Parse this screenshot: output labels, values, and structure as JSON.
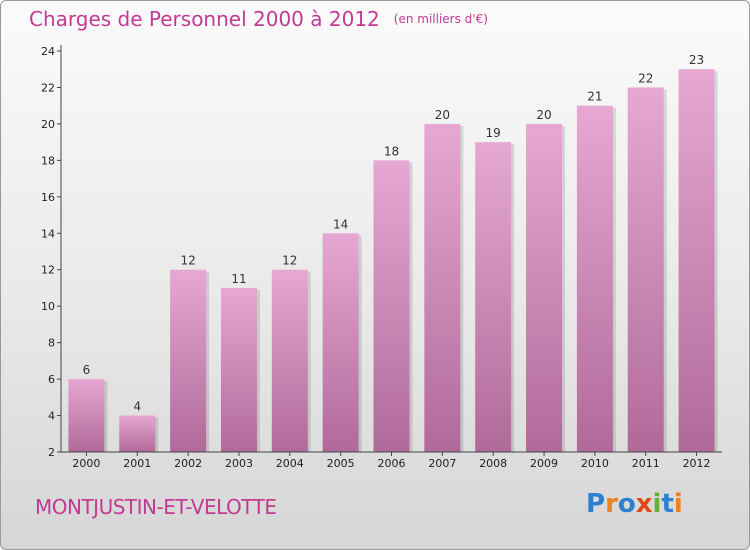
{
  "header": {
    "title": "Charges de Personnel 2000 à 2012",
    "subtitle": "(en milliers d'€)"
  },
  "footer": {
    "commune": "MONTJUSTIN-ET-VELOTTE",
    "logo_letters": [
      "P",
      "r",
      "o",
      "x",
      "i",
      "t",
      "i"
    ],
    "logo_colors": [
      "#2d7fd0",
      "#e8831f",
      "#2d7fd0",
      "#e2471c",
      "#62b52e",
      "#2d7fd0",
      "#e8831f"
    ]
  },
  "colors": {
    "bar_top": "#e6a8d2",
    "bar_bottom": "#b06a9a",
    "accent": "#c23a93"
  },
  "chart_data": {
    "type": "bar",
    "title": "Charges de Personnel 2000 à 2012",
    "subtitle": "(en milliers d'€)",
    "categories": [
      "2000",
      "2001",
      "2002",
      "2003",
      "2004",
      "2005",
      "2006",
      "2007",
      "2008",
      "2009",
      "2010",
      "2011",
      "2012"
    ],
    "values": [
      6,
      4,
      12,
      11,
      12,
      14,
      18,
      20,
      19,
      20,
      21,
      22,
      23
    ],
    "ylim": [
      2,
      24
    ],
    "yticks": [
      2,
      4,
      6,
      8,
      10,
      12,
      14,
      16,
      18,
      20,
      22,
      24
    ],
    "xlabel": "",
    "ylabel": "",
    "grid": false,
    "data_labels": true
  }
}
